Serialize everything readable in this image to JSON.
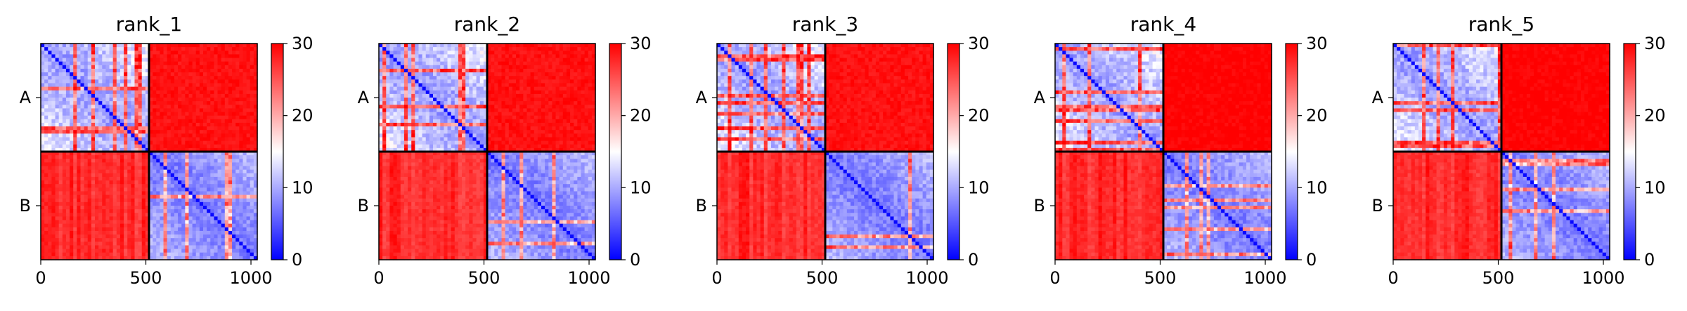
{
  "figure": {
    "colormap": "bwr",
    "colors": {
      "low": "#0000ff",
      "mid": "#ffffff",
      "high": "#ff0000",
      "frame": "#000000",
      "chain_border": "#000000"
    }
  },
  "chart_data": [
    {
      "type": "heatmap",
      "title": "rank_1",
      "x": [
        0,
        1030
      ],
      "x_ticks": [
        0,
        500,
        1000
      ],
      "y_ticks": [
        "A",
        "B"
      ],
      "chain_boundary": 515,
      "colorbar": {
        "min": 0,
        "max": 30,
        "ticks": [
          0,
          10,
          20,
          30
        ]
      },
      "block_levels": {
        "A-A": 9,
        "A-B": 29,
        "B-A": 29,
        "B-B": 7
      },
      "xlabel": "",
      "ylabel": ""
    },
    {
      "type": "heatmap",
      "title": "rank_2",
      "x": [
        0,
        1030
      ],
      "x_ticks": [
        0,
        500,
        1000
      ],
      "y_ticks": [
        "A",
        "B"
      ],
      "chain_boundary": 515,
      "colorbar": {
        "min": 0,
        "max": 30,
        "ticks": [
          0,
          10,
          20,
          30
        ]
      },
      "block_levels": {
        "A-A": 9,
        "A-B": 29,
        "B-A": 29,
        "B-B": 7
      },
      "xlabel": "",
      "ylabel": ""
    },
    {
      "type": "heatmap",
      "title": "rank_3",
      "x": [
        0,
        1030
      ],
      "x_ticks": [
        0,
        500,
        1000
      ],
      "y_ticks": [
        "A",
        "B"
      ],
      "chain_boundary": 515,
      "colorbar": {
        "min": 0,
        "max": 30,
        "ticks": [
          0,
          10,
          20,
          30
        ]
      },
      "block_levels": {
        "A-A": 9,
        "A-B": 29,
        "B-A": 29,
        "B-B": 7
      },
      "xlabel": "",
      "ylabel": ""
    },
    {
      "type": "heatmap",
      "title": "rank_4",
      "x": [
        0,
        1030
      ],
      "x_ticks": [
        0,
        500,
        1000
      ],
      "y_ticks": [
        "A",
        "B"
      ],
      "chain_boundary": 515,
      "colorbar": {
        "min": 0,
        "max": 30,
        "ticks": [
          0,
          10,
          20,
          30
        ]
      },
      "block_levels": {
        "A-A": 9,
        "A-B": 30,
        "B-A": 29,
        "B-B": 7
      },
      "xlabel": "",
      "ylabel": ""
    },
    {
      "type": "heatmap",
      "title": "rank_5",
      "x": [
        0,
        1030
      ],
      "x_ticks": [
        0,
        500,
        1000
      ],
      "y_ticks": [
        "A",
        "B"
      ],
      "chain_boundary": 515,
      "colorbar": {
        "min": 0,
        "max": 30,
        "ticks": [
          0,
          10,
          20,
          30
        ]
      },
      "block_levels": {
        "A-A": 9,
        "A-B": 30,
        "B-A": 29,
        "B-B": 7
      },
      "xlabel": "",
      "ylabel": ""
    }
  ]
}
